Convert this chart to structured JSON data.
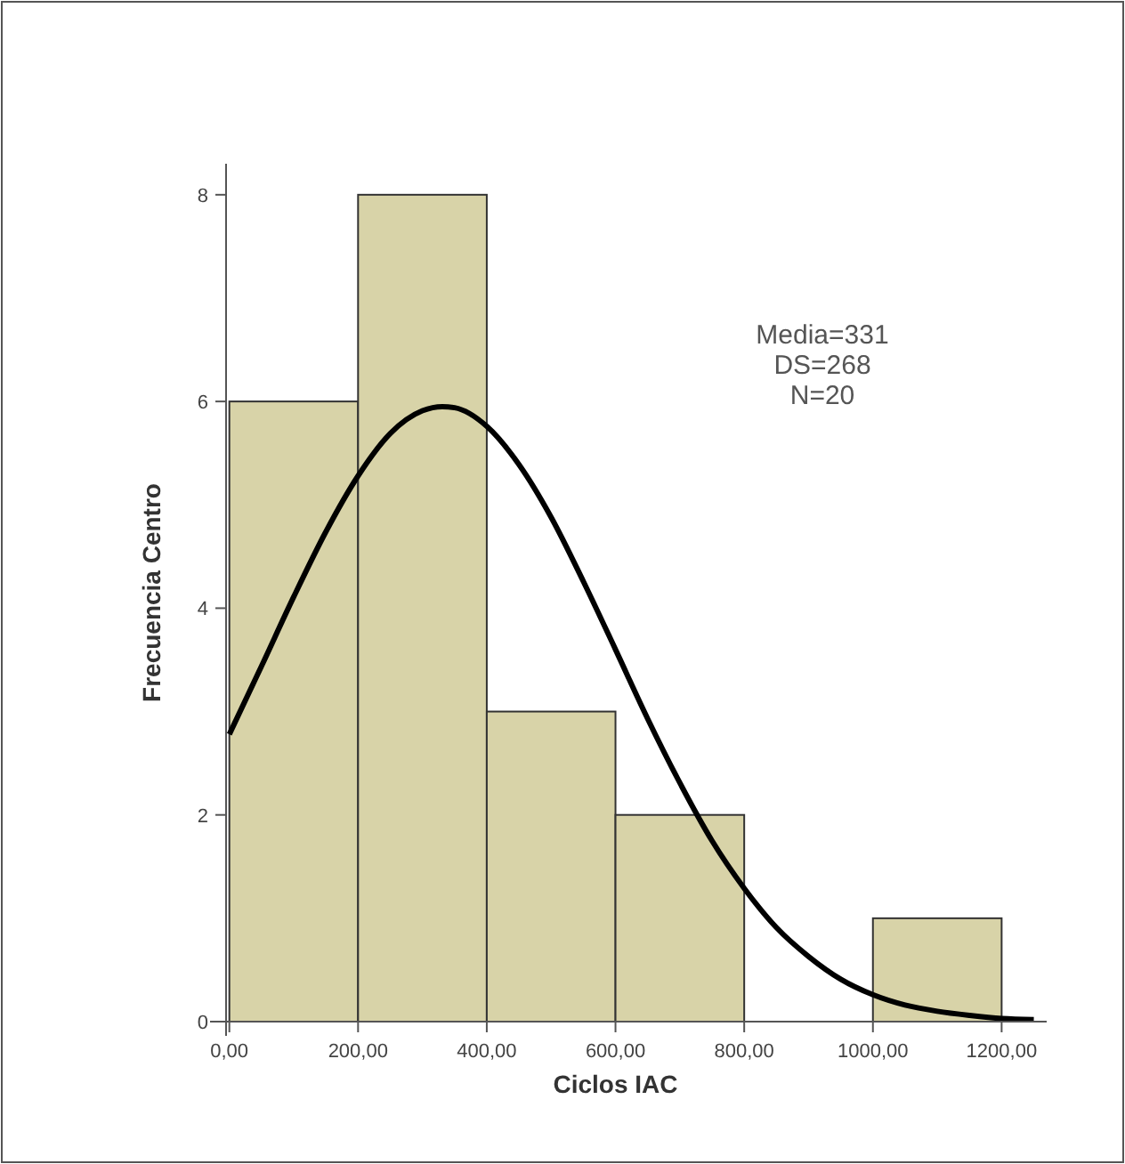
{
  "chart_data": {
    "type": "histogram",
    "xlabel": "Ciclos IAC",
    "ylabel": "Frecuencia Centro",
    "bins": [
      0,
      200,
      400,
      600,
      800,
      1000,
      1200
    ],
    "values": [
      6,
      8,
      3,
      2,
      0,
      1
    ],
    "color": "#d8d3a8",
    "xlim": [
      -30,
      1270
    ],
    "ylim": [
      0,
      8.3
    ],
    "xticks": [
      {
        "value": 0,
        "label": "0,00"
      },
      {
        "value": 200,
        "label": "200,00"
      },
      {
        "value": 400,
        "label": "400,00"
      },
      {
        "value": 600,
        "label": "600,00"
      },
      {
        "value": 800,
        "label": "800,00"
      },
      {
        "value": 1000,
        "label": "1000,00"
      },
      {
        "value": 1200,
        "label": "1200,00"
      }
    ],
    "yticks": [
      0,
      2,
      4,
      6,
      8
    ],
    "series": [
      {
        "type": "line",
        "color": "#000000",
        "x": [
          0,
          50,
          100,
          150,
          200,
          250,
          300,
          331,
          350,
          400,
          450,
          500,
          550,
          600,
          650,
          700,
          750,
          800,
          850,
          900,
          950,
          1000,
          1050,
          1100,
          1150,
          1200,
          1250
        ],
        "values": [
          2.78,
          3.44,
          4.11,
          4.74,
          5.28,
          5.69,
          5.91,
          5.95,
          5.94,
          5.76,
          5.39,
          4.88,
          4.26,
          3.6,
          2.93,
          2.31,
          1.75,
          1.29,
          0.91,
          0.63,
          0.41,
          0.26,
          0.16,
          0.1,
          0.06,
          0.03,
          0.02
        ]
      }
    ],
    "annotations": [
      "Media=331",
      "DS=268",
      "N=20"
    ],
    "grid": false
  }
}
